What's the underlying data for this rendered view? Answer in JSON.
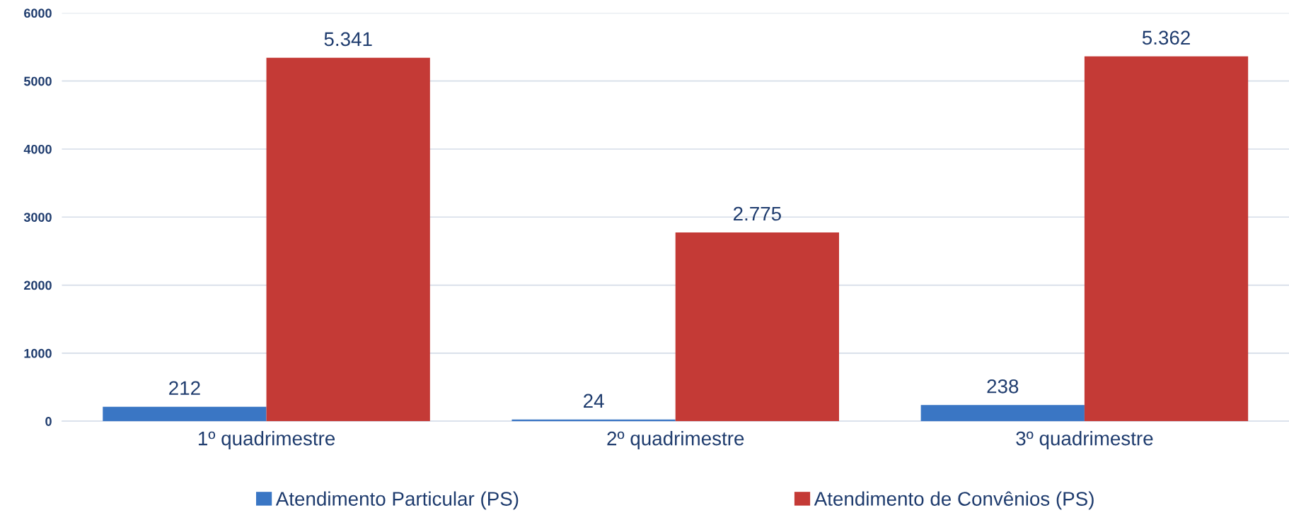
{
  "chart_data": {
    "type": "bar",
    "categories": [
      "1º quadrimestre",
      "2º quadrimestre",
      "3º quadrimestre"
    ],
    "series": [
      {
        "name": "Atendimento Particular (PS)",
        "color": "#3a76c4",
        "values": [
          212,
          24,
          238
        ],
        "value_labels": [
          "212",
          "24",
          "238"
        ]
      },
      {
        "name": "Atendimento de Convênios (PS)",
        "color": "#c43a36",
        "values": [
          5341,
          2775,
          5362
        ],
        "value_labels": [
          "5.341",
          "2.775",
          "5.362"
        ]
      }
    ],
    "ylim": [
      0,
      6000
    ],
    "yticks": [
      0,
      1000,
      2000,
      3000,
      4000,
      5000,
      6000
    ],
    "grid": "y",
    "legend": "bottom"
  }
}
